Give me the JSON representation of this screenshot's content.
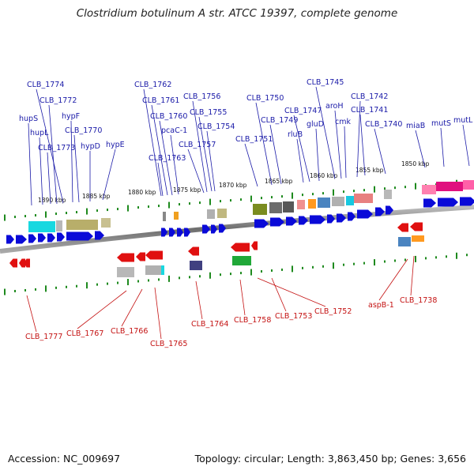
{
  "title": "Clostridium botulinum A str. ATCC 19397, complete genome",
  "footer": {
    "accession": "Accession: NC_009697",
    "summary": "Topology: circular; Length: 3,863,450 bp; Genes: 3,656"
  },
  "kbp_labels": [
    "1890 kbp",
    "1885 kbp",
    "1880 kbp",
    "1875 kbp",
    "1870 kbp",
    "1865 kbp",
    "1860 kbp",
    "1855 kbp",
    "1850 kbp"
  ],
  "forward_genes": [
    "hupS",
    "hupL",
    "CLB_1773",
    "CLB_1772",
    "CLB_1774",
    "hypF",
    "CLB_1770",
    "hypD",
    "hypE",
    "CLB_1763",
    "CLB_1762",
    "CLB_1761",
    "CLB_1760",
    "pcaC-1",
    "CLB_1757",
    "CLB_1756",
    "CLB_1755",
    "CLB_1754",
    "CLB_1751",
    "CLB_1750",
    "CLB_1749",
    "rluB",
    "CLB_1747",
    "gluD",
    "CLB_1745",
    "aroH",
    "cmk",
    "CLB_1742",
    "CLB_1741",
    "CLB_1740",
    "miaB",
    "mutS",
    "mutL"
  ],
  "reverse_genes": [
    "CLB_1777",
    "CLB_1767",
    "CLB_1766",
    "CLB_1765",
    "CLB_1764",
    "CLB_1758",
    "CLB_1753",
    "CLB_1752",
    "aspB-1",
    "CLB_1738"
  ],
  "colors": {
    "forward_label": "#1a1aa8",
    "reverse_label": "#c41212",
    "forward_gene": "#0a0ad8",
    "reverse_gene": "#e01010",
    "tick": "#1e8a1e",
    "backbone": "#8a8a8a"
  }
}
